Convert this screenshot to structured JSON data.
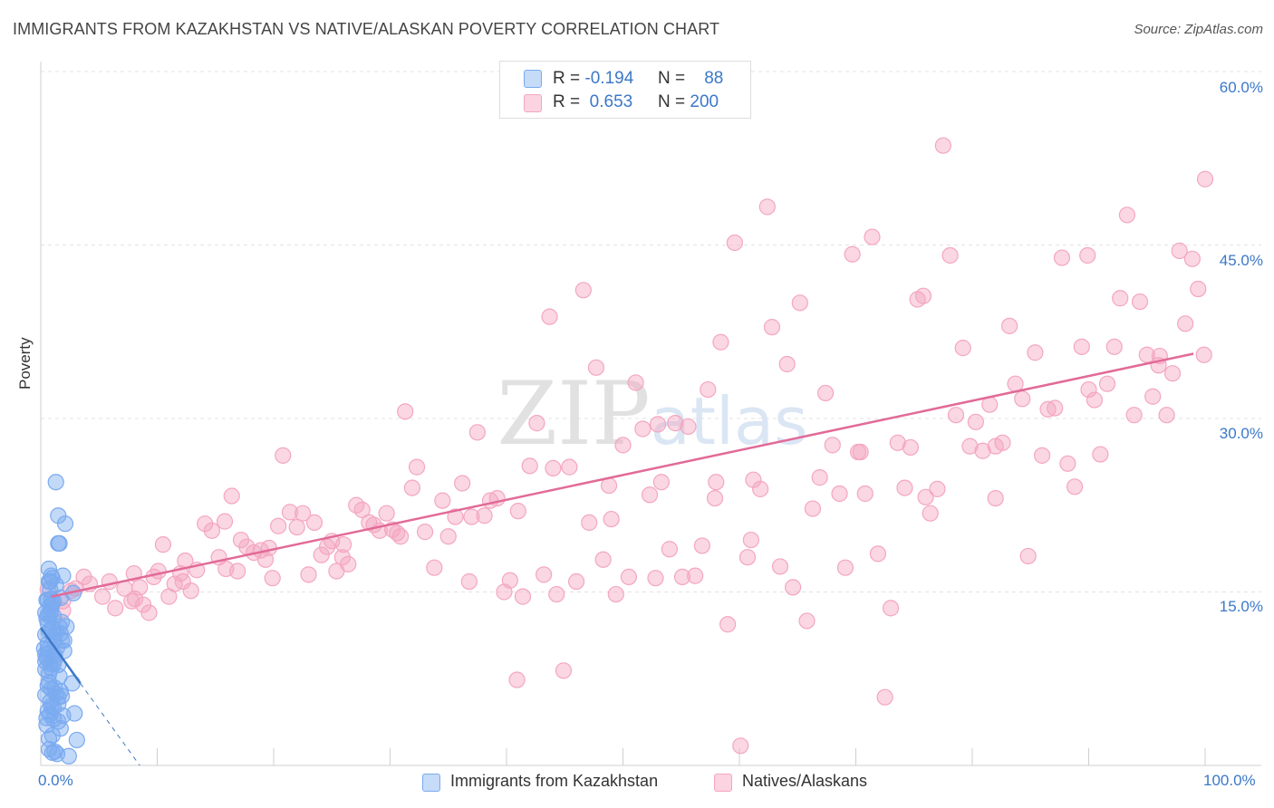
{
  "header": {
    "title": "IMMIGRANTS FROM KAZAKHSTAN VS NATIVE/ALASKAN POVERTY CORRELATION CHART",
    "source": "Source: ZipAtlas.com"
  },
  "watermark": "ZIPatlas",
  "legend_top": {
    "rows": [
      {
        "r_label": "R =",
        "r_value": "-0.194",
        "n_label": "N =",
        "n_value": "88"
      },
      {
        "r_label": "R =",
        "r_value": "0.653",
        "n_label": "N =",
        "n_value": "200"
      }
    ]
  },
  "colors": {
    "series1": "#7aaaf0",
    "series1_line": "#3b78c9",
    "series2": "#f4a6c0",
    "series2_line": "#e26a97",
    "tick_text": "#3b78c9"
  },
  "chart_data": {
    "type": "scatter",
    "title": "IMMIGRANTS FROM KAZAKHSTAN VS NATIVE/ALASKAN POVERTY CORRELATION CHART",
    "xlabel": "",
    "ylabel": "Poverty",
    "xlim": [
      0,
      100
    ],
    "ylim": [
      0,
      60
    ],
    "x_tick_labels": [
      "0.0%",
      "100.0%"
    ],
    "y_tick_labels": [
      "15.0%",
      "30.0%",
      "45.0%",
      "60.0%"
    ],
    "y_ticks": [
      15,
      30,
      45,
      60
    ],
    "grid": "horizontal dashed",
    "legend_position": "bottom",
    "series": [
      {
        "name": "Immigrants from Kazakhstan",
        "r": -0.194,
        "n": 88,
        "trend": {
          "x": [
            0,
            3.4
          ],
          "y": [
            11.9,
            7.1
          ]
        },
        "trend_extension": {
          "x": [
            3.4,
            8.5
          ],
          "y": [
            7.1,
            0
          ]
        },
        "points": [
          [
            1.3,
            24.5
          ],
          [
            1.5,
            21.6
          ],
          [
            2.1,
            20.9
          ],
          [
            1.6,
            19.2
          ],
          [
            1.5,
            19.2
          ],
          [
            0.7,
            17.0
          ],
          [
            0.9,
            16.4
          ],
          [
            1.9,
            16.4
          ],
          [
            1.0,
            16.2
          ],
          [
            0.7,
            15.9
          ],
          [
            2.8,
            14.9
          ],
          [
            0.5,
            14.3
          ],
          [
            0.6,
            14.3
          ],
          [
            1.7,
            14.5
          ],
          [
            0.9,
            14.4
          ],
          [
            1.1,
            14.2
          ],
          [
            0.8,
            13.8
          ],
          [
            0.8,
            13.1
          ],
          [
            0.4,
            13.2
          ],
          [
            0.6,
            13.0
          ],
          [
            1.1,
            12.9
          ],
          [
            0.6,
            12.3
          ],
          [
            1.8,
            12.4
          ],
          [
            2.2,
            12.0
          ],
          [
            0.7,
            11.6
          ],
          [
            1.3,
            11.5
          ],
          [
            1.7,
            11.4
          ],
          [
            0.4,
            11.3
          ],
          [
            1.1,
            10.9
          ],
          [
            1.8,
            10.8
          ],
          [
            2.0,
            10.8
          ],
          [
            0.6,
            10.5
          ],
          [
            0.3,
            10.1
          ],
          [
            0.4,
            9.6
          ],
          [
            2.0,
            9.9
          ],
          [
            0.6,
            9.7
          ],
          [
            0.5,
            9.3
          ],
          [
            1.2,
            9.2
          ],
          [
            0.4,
            9.0
          ],
          [
            1.1,
            8.8
          ],
          [
            1.5,
            8.7
          ],
          [
            0.8,
            8.8
          ],
          [
            0.9,
            8.4
          ],
          [
            0.4,
            8.3
          ],
          [
            1.6,
            7.7
          ],
          [
            0.7,
            7.9
          ],
          [
            2.7,
            7.1
          ],
          [
            0.6,
            6.9
          ],
          [
            1.2,
            6.7
          ],
          [
            1.7,
            6.4
          ],
          [
            0.9,
            6.6
          ],
          [
            1.3,
            6.2
          ],
          [
            0.4,
            6.1
          ],
          [
            1.5,
            5.9
          ],
          [
            0.8,
            5.5
          ],
          [
            1.5,
            5.3
          ],
          [
            0.9,
            5.1
          ],
          [
            1.1,
            5.0
          ],
          [
            0.6,
            4.7
          ],
          [
            2.9,
            4.5
          ],
          [
            0.8,
            4.4
          ],
          [
            0.5,
            4.1
          ],
          [
            1.9,
            4.3
          ],
          [
            1.1,
            4.0
          ],
          [
            1.5,
            3.8
          ],
          [
            1.7,
            3.2
          ],
          [
            1.0,
            2.6
          ],
          [
            0.7,
            2.3
          ],
          [
            3.1,
            2.2
          ],
          [
            0.7,
            1.4
          ],
          [
            1.2,
            1.2
          ],
          [
            1.4,
            1.0
          ],
          [
            2.4,
            0.8
          ],
          [
            1.0,
            1.1
          ],
          [
            0.8,
            15.2
          ],
          [
            1.3,
            15.6
          ],
          [
            0.5,
            12.7
          ],
          [
            1.4,
            10.2
          ],
          [
            1.0,
            11.9
          ],
          [
            0.9,
            13.5
          ],
          [
            1.6,
            12.0
          ],
          [
            0.6,
            10.0
          ],
          [
            1.2,
            9.5
          ],
          [
            0.7,
            7.2
          ],
          [
            1.8,
            6.0
          ],
          [
            0.5,
            3.5
          ],
          [
            1.0,
            14.0
          ],
          [
            0.8,
            15.9
          ]
        ]
      },
      {
        "name": "Natives/Alaskans",
        "r": 0.653,
        "n": 200,
        "trend": {
          "x": [
            0.9,
            99.0
          ],
          "y": [
            14.6,
            35.6
          ]
        },
        "points": [
          [
            1.9,
            13.4
          ],
          [
            0.6,
            15.2
          ],
          [
            2.6,
            15.1
          ],
          [
            3.7,
            16.3
          ],
          [
            3.0,
            15.3
          ],
          [
            1.9,
            14.2
          ],
          [
            4.2,
            15.7
          ],
          [
            5.3,
            14.6
          ],
          [
            5.9,
            15.9
          ],
          [
            6.4,
            13.6
          ],
          [
            7.2,
            15.3
          ],
          [
            7.8,
            14.2
          ],
          [
            8.0,
            16.6
          ],
          [
            8.5,
            15.4
          ],
          [
            8.8,
            13.9
          ],
          [
            9.3,
            13.2
          ],
          [
            9.7,
            16.3
          ],
          [
            10.1,
            16.8
          ],
          [
            10.5,
            19.1
          ],
          [
            11.0,
            14.6
          ],
          [
            11.5,
            15.7
          ],
          [
            12.0,
            16.6
          ],
          [
            12.4,
            17.7
          ],
          [
            12.9,
            15.1
          ],
          [
            13.4,
            16.9
          ],
          [
            14.1,
            20.9
          ],
          [
            14.7,
            20.3
          ],
          [
            15.3,
            18.0
          ],
          [
            15.8,
            21.1
          ],
          [
            16.4,
            23.3
          ],
          [
            16.9,
            16.8
          ],
          [
            17.2,
            19.5
          ],
          [
            17.7,
            18.9
          ],
          [
            18.3,
            18.4
          ],
          [
            18.9,
            18.6
          ],
          [
            19.3,
            17.8
          ],
          [
            19.9,
            16.2
          ],
          [
            20.4,
            20.7
          ],
          [
            20.8,
            26.8
          ],
          [
            21.4,
            21.9
          ],
          [
            22.0,
            20.6
          ],
          [
            22.5,
            21.8
          ],
          [
            23.0,
            16.5
          ],
          [
            23.5,
            21.0
          ],
          [
            24.1,
            18.2
          ],
          [
            24.6,
            18.9
          ],
          [
            25.0,
            19.4
          ],
          [
            25.4,
            16.8
          ],
          [
            25.9,
            18.0
          ],
          [
            26.4,
            17.4
          ],
          [
            27.1,
            22.5
          ],
          [
            27.6,
            22.1
          ],
          [
            28.2,
            21.0
          ],
          [
            28.6,
            20.8
          ],
          [
            29.1,
            20.3
          ],
          [
            29.7,
            21.8
          ],
          [
            30.2,
            20.4
          ],
          [
            30.9,
            19.8
          ],
          [
            31.3,
            30.6
          ],
          [
            31.9,
            24.0
          ],
          [
            32.3,
            25.8
          ],
          [
            33.0,
            20.2
          ],
          [
            33.8,
            17.1
          ],
          [
            34.5,
            22.9
          ],
          [
            35.0,
            19.8
          ],
          [
            35.6,
            21.5
          ],
          [
            36.2,
            24.4
          ],
          [
            36.8,
            15.9
          ],
          [
            37.5,
            28.8
          ],
          [
            38.1,
            21.6
          ],
          [
            38.6,
            22.9
          ],
          [
            39.2,
            23.1
          ],
          [
            39.8,
            15.0
          ],
          [
            40.3,
            16.0
          ],
          [
            40.9,
            7.4
          ],
          [
            41.4,
            14.6
          ],
          [
            42.0,
            25.9
          ],
          [
            42.6,
            29.6
          ],
          [
            43.2,
            16.5
          ],
          [
            43.7,
            38.8
          ],
          [
            44.3,
            14.8
          ],
          [
            44.9,
            8.2
          ],
          [
            45.4,
            25.8
          ],
          [
            46.0,
            15.9
          ],
          [
            46.6,
            41.1
          ],
          [
            47.1,
            21.0
          ],
          [
            47.7,
            34.4
          ],
          [
            48.3,
            17.8
          ],
          [
            48.8,
            24.2
          ],
          [
            49.4,
            14.8
          ],
          [
            50.0,
            27.7
          ],
          [
            50.5,
            16.3
          ],
          [
            51.1,
            33.1
          ],
          [
            51.7,
            29.1
          ],
          [
            52.3,
            23.4
          ],
          [
            52.8,
            16.2
          ],
          [
            53.3,
            24.5
          ],
          [
            54.0,
            18.7
          ],
          [
            54.5,
            29.6
          ],
          [
            55.1,
            16.3
          ],
          [
            55.6,
            29.3
          ],
          [
            56.2,
            16.4
          ],
          [
            56.8,
            19.0
          ],
          [
            57.3,
            32.5
          ],
          [
            57.9,
            23.1
          ],
          [
            58.4,
            36.6
          ],
          [
            59.0,
            12.2
          ],
          [
            59.6,
            45.2
          ],
          [
            60.1,
            1.7
          ],
          [
            60.7,
            18.0
          ],
          [
            61.2,
            24.7
          ],
          [
            61.8,
            23.9
          ],
          [
            62.4,
            48.3
          ],
          [
            62.8,
            37.9
          ],
          [
            63.5,
            17.2
          ],
          [
            64.1,
            34.7
          ],
          [
            64.6,
            15.4
          ],
          [
            65.2,
            40.0
          ],
          [
            65.8,
            12.5
          ],
          [
            66.3,
            22.2
          ],
          [
            66.9,
            24.9
          ],
          [
            67.4,
            32.2
          ],
          [
            68.0,
            27.7
          ],
          [
            68.6,
            23.5
          ],
          [
            69.1,
            17.1
          ],
          [
            69.7,
            44.2
          ],
          [
            70.2,
            27.1
          ],
          [
            70.8,
            23.5
          ],
          [
            71.4,
            45.7
          ],
          [
            71.9,
            18.3
          ],
          [
            72.5,
            5.9
          ],
          [
            73.0,
            13.6
          ],
          [
            73.6,
            27.9
          ],
          [
            74.2,
            24.0
          ],
          [
            74.7,
            27.5
          ],
          [
            75.3,
            40.3
          ],
          [
            75.8,
            40.6
          ],
          [
            76.4,
            21.8
          ],
          [
            77.0,
            23.9
          ],
          [
            77.5,
            53.6
          ],
          [
            78.1,
            44.1
          ],
          [
            78.6,
            30.3
          ],
          [
            79.2,
            36.1
          ],
          [
            79.8,
            27.6
          ],
          [
            80.3,
            29.7
          ],
          [
            80.9,
            27.2
          ],
          [
            81.5,
            31.2
          ],
          [
            82.0,
            23.1
          ],
          [
            82.6,
            27.9
          ],
          [
            83.2,
            38.0
          ],
          [
            83.7,
            33.0
          ],
          [
            84.3,
            31.7
          ],
          [
            84.8,
            18.1
          ],
          [
            85.4,
            35.7
          ],
          [
            86.0,
            26.8
          ],
          [
            86.5,
            30.8
          ],
          [
            87.1,
            30.9
          ],
          [
            87.7,
            43.9
          ],
          [
            88.2,
            26.1
          ],
          [
            88.8,
            24.1
          ],
          [
            89.4,
            36.2
          ],
          [
            89.9,
            44.1
          ],
          [
            90.5,
            31.6
          ],
          [
            91.0,
            26.9
          ],
          [
            91.6,
            33.0
          ],
          [
            92.2,
            36.2
          ],
          [
            92.7,
            40.4
          ],
          [
            93.3,
            47.6
          ],
          [
            93.9,
            30.3
          ],
          [
            94.4,
            40.1
          ],
          [
            95.0,
            35.5
          ],
          [
            95.5,
            31.9
          ],
          [
            96.1,
            35.4
          ],
          [
            96.7,
            30.3
          ],
          [
            97.2,
            33.9
          ],
          [
            97.8,
            44.5
          ],
          [
            98.3,
            38.2
          ],
          [
            98.9,
            43.8
          ],
          [
            99.4,
            41.2
          ],
          [
            99.9,
            35.5
          ],
          [
            100.0,
            50.7
          ],
          [
            8.1,
            14.4
          ],
          [
            12.2,
            15.9
          ],
          [
            15.9,
            17.0
          ],
          [
            19.6,
            18.8
          ],
          [
            26.0,
            19.1
          ],
          [
            30.6,
            20.1
          ],
          [
            37.0,
            21.5
          ],
          [
            41.0,
            22.0
          ],
          [
            44.0,
            25.7
          ],
          [
            49.0,
            21.3
          ],
          [
            53.0,
            29.5
          ],
          [
            58.0,
            24.5
          ],
          [
            61.0,
            19.5
          ],
          [
            70.4,
            27.1
          ],
          [
            76.0,
            23.2
          ],
          [
            82.0,
            27.6
          ],
          [
            90.0,
            32.5
          ],
          [
            96.0,
            34.6
          ]
        ]
      }
    ]
  },
  "legend_bottom": {
    "items": [
      "Immigrants from Kazakhstan",
      "Natives/Alaskans"
    ]
  }
}
